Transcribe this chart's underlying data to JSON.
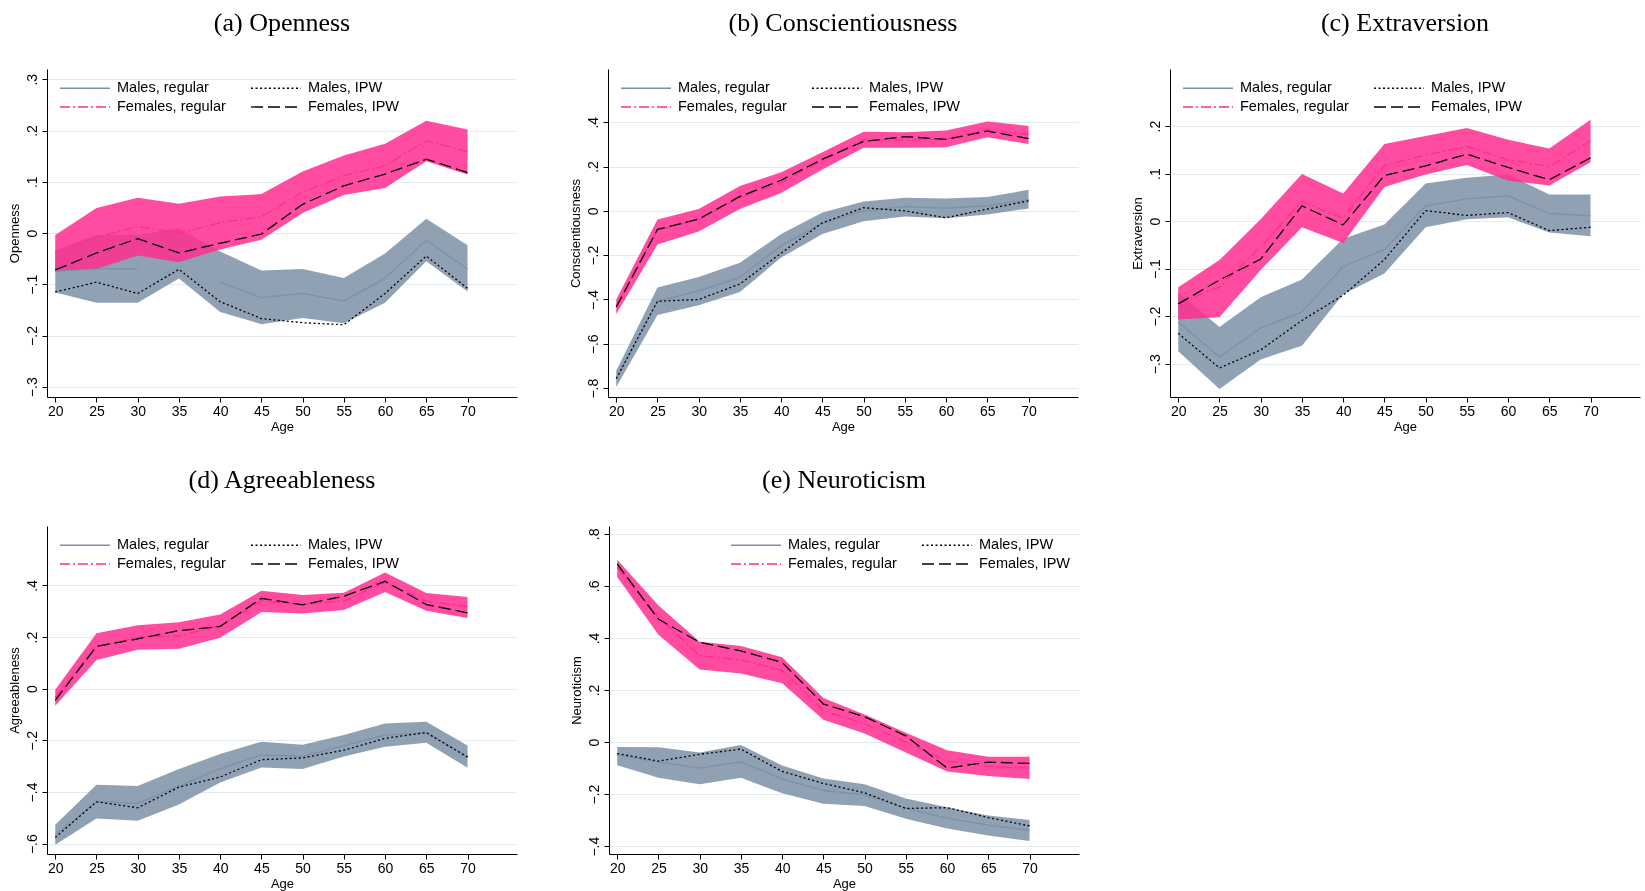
{
  "chart_data": [
    {
      "type": "line",
      "title": "(a) Openness",
      "xlabel": "Age",
      "ylabel": "Openness",
      "x": [
        20,
        25,
        30,
        35,
        40,
        45,
        50,
        55,
        60,
        65,
        70
      ],
      "xlim": [
        19,
        76
      ],
      "xticks": [
        20,
        25,
        30,
        35,
        40,
        45,
        50,
        55,
        60,
        65,
        70
      ],
      "ylim": [
        -0.32,
        0.32
      ],
      "yticks": [
        {
          "value": -0.3,
          "label": "−.3"
        },
        {
          "value": -0.2,
          "label": "−.2"
        },
        {
          "value": -0.1,
          "label": "−.1"
        },
        {
          "value": 0,
          "label": "0"
        },
        {
          "value": 0.1,
          "label": ".1"
        },
        {
          "value": 0.2,
          "label": ".2"
        },
        {
          "value": 0.3,
          "label": ".3"
        }
      ],
      "grid": "y",
      "legend": "top left",
      "series": [
        {
          "name": "Males, regular",
          "color": "#7d90a7",
          "line_style": "solid",
          "values": [
            -0.075,
            -0.07,
            -0.07,
            null,
            -0.096,
            -0.126,
            -0.118,
            -0.133,
            -0.088,
            -0.014,
            -0.07
          ],
          "lower": [
            -0.116,
            -0.136,
            -0.136,
            -0.089,
            -0.154,
            -0.178,
            -0.166,
            -0.176,
            -0.136,
            -0.055,
            -0.114
          ],
          "upper": [
            -0.034,
            -0.004,
            -0.004,
            0.009,
            -0.036,
            -0.073,
            -0.07,
            -0.088,
            -0.04,
            0.028,
            -0.024
          ]
        },
        {
          "name": "Males, IPW",
          "color": "#000000",
          "line_style": "dotted",
          "values": [
            -0.115,
            -0.096,
            -0.118,
            -0.071,
            -0.134,
            -0.167,
            -0.175,
            -0.179,
            -0.118,
            -0.045,
            -0.108
          ]
        },
        {
          "name": "Females, regular",
          "color": "#ff2d91",
          "line_style": "dashdot",
          "values": [
            -0.039,
            -0.009,
            0.013,
            0,
            0.02,
            0.032,
            0.08,
            0.112,
            0.131,
            0.18,
            0.159
          ],
          "lower": [
            -0.074,
            -0.07,
            -0.044,
            -0.057,
            -0.032,
            -0.013,
            0.039,
            0.074,
            0.088,
            0.14,
            0.114
          ],
          "upper": [
            -0.004,
            0.049,
            0.069,
            0.057,
            0.071,
            0.076,
            0.12,
            0.151,
            0.174,
            0.219,
            0.202
          ]
        },
        {
          "name": "Females, IPW",
          "color": "#000000",
          "line_style": "dashed",
          "values": [
            -0.072,
            -0.039,
            -0.011,
            -0.039,
            -0.02,
            -0.002,
            0.056,
            0.092,
            0.115,
            0.144,
            0.118
          ]
        }
      ]
    },
    {
      "type": "line",
      "title": "(b) Conscientiousness",
      "xlabel": "Age",
      "ylabel": "Conscientiousness",
      "x": [
        20,
        25,
        30,
        35,
        40,
        45,
        50,
        55,
        60,
        65,
        70
      ],
      "xlim": [
        19,
        76
      ],
      "xticks": [
        20,
        25,
        30,
        35,
        40,
        45,
        50,
        55,
        60,
        65,
        70
      ],
      "ylim": [
        -0.84,
        0.64
      ],
      "yticks": [
        {
          "value": -0.8,
          "label": "−.8"
        },
        {
          "value": -0.6,
          "label": "−.6"
        },
        {
          "value": -0.4,
          "label": "−.4"
        },
        {
          "value": -0.2,
          "label": "−.2"
        },
        {
          "value": 0,
          "label": "0"
        },
        {
          "value": 0.2,
          "label": ".2"
        },
        {
          "value": 0.4,
          "label": ".4"
        }
      ],
      "grid": "y",
      "legend": "top left",
      "series": [
        {
          "name": "Males, regular",
          "color": "#7d90a7",
          "line_style": "solid",
          "values": [
            -0.757,
            -0.408,
            -0.361,
            -0.299,
            -0.157,
            -0.056,
            0,
            0.019,
            0.012,
            0.023,
            0.05
          ],
          "lower": [
            -0.795,
            -0.47,
            -0.426,
            -0.366,
            -0.211,
            -0.105,
            -0.047,
            -0.025,
            -0.033,
            -0.016,
            0.011
          ],
          "upper": [
            -0.722,
            -0.346,
            -0.299,
            -0.234,
            -0.105,
            -0.008,
            0.042,
            0.059,
            0.056,
            0.062,
            0.095
          ]
        },
        {
          "name": "Males, IPW",
          "color": "#000000",
          "line_style": "dotted",
          "values": [
            -0.757,
            -0.408,
            -0.4,
            -0.33,
            -0.191,
            -0.054,
            0.014,
            0,
            -0.031,
            0.008,
            0.045
          ]
        },
        {
          "name": "Females, regular",
          "color": "#ff2d91",
          "line_style": "dashdot",
          "values": [
            -0.431,
            -0.087,
            -0.04,
            0.06,
            0.127,
            0.225,
            0.321,
            0.319,
            0.324,
            0.367,
            0.344
          ],
          "lower": [
            -0.465,
            -0.152,
            -0.093,
            0.008,
            0.081,
            0.186,
            0.285,
            0.285,
            0.287,
            0.332,
            0.302
          ],
          "upper": [
            -0.4,
            -0.039,
            0.008,
            0.112,
            0.174,
            0.264,
            0.357,
            0.355,
            0.363,
            0.403,
            0.383
          ]
        },
        {
          "name": "Females, IPW",
          "color": "#000000",
          "line_style": "dashed",
          "values": [
            -0.434,
            -0.084,
            -0.037,
            0.065,
            0.138,
            0.233,
            0.313,
            0.335,
            0.322,
            0.36,
            0.326
          ]
        }
      ]
    },
    {
      "type": "line",
      "title": "(c) Extraversion",
      "xlabel": "Age",
      "ylabel": "Extraversion",
      "x": [
        20,
        25,
        30,
        35,
        40,
        45,
        50,
        55,
        60,
        65,
        70
      ],
      "xlim": [
        19,
        76
      ],
      "xticks": [
        20,
        25,
        30,
        35,
        40,
        45,
        50,
        55,
        60,
        65,
        70
      ],
      "ylim": [
        -0.37,
        0.32
      ],
      "yticks": [
        {
          "value": -0.3,
          "label": "−.3"
        },
        {
          "value": -0.2,
          "label": "−.2"
        },
        {
          "value": -0.1,
          "label": "−.1"
        },
        {
          "value": 0,
          "label": "0"
        },
        {
          "value": 0.1,
          "label": ".1"
        },
        {
          "value": 0.2,
          "label": ".2"
        }
      ],
      "grid": "y",
      "legend": "top left",
      "series": [
        {
          "name": "Males, regular",
          "color": "#7d90a7",
          "line_style": "solid",
          "values": [
            -0.212,
            -0.286,
            -0.225,
            -0.191,
            -0.096,
            -0.06,
            0.032,
            0.047,
            0.053,
            0.016,
            0.011
          ],
          "lower": [
            -0.274,
            -0.353,
            -0.291,
            -0.262,
            -0.154,
            -0.11,
            -0.013,
            0.004,
            0.008,
            -0.024,
            -0.032
          ],
          "upper": [
            -0.15,
            -0.223,
            -0.16,
            -0.123,
            -0.037,
            -0.007,
            0.079,
            0.091,
            0.098,
            0.056,
            0.056
          ]
        },
        {
          "name": "Males, IPW",
          "color": "#000000",
          "line_style": "dotted",
          "values": [
            -0.236,
            -0.309,
            -0.271,
            -0.209,
            -0.156,
            -0.081,
            0.022,
            0.012,
            0.018,
            -0.02,
            -0.013
          ]
        },
        {
          "name": "Females, regular",
          "color": "#ff2d91",
          "line_style": "dashdot",
          "values": [
            -0.172,
            -0.139,
            -0.054,
            0.041,
            0.006,
            0.117,
            0.139,
            0.157,
            0.129,
            0.115,
            0.169
          ],
          "lower": [
            -0.207,
            -0.202,
            -0.103,
            -0.013,
            -0.046,
            0.072,
            0.098,
            0.118,
            0.085,
            0.075,
            0.124
          ],
          "upper": [
            -0.139,
            -0.082,
            0.004,
            0.099,
            0.058,
            0.162,
            0.179,
            0.196,
            0.171,
            0.153,
            0.213
          ]
        },
        {
          "name": "Females, IPW",
          "color": "#000000",
          "line_style": "dashed",
          "values": [
            -0.174,
            -0.124,
            -0.08,
            0.032,
            -0.008,
            0.096,
            0.116,
            0.141,
            0.113,
            0.087,
            0.133
          ]
        }
      ]
    },
    {
      "type": "line",
      "title": "(d) Agreeableness",
      "xlabel": "Age",
      "ylabel": "Agreeableness",
      "x": [
        20,
        25,
        30,
        35,
        40,
        45,
        50,
        55,
        60,
        65,
        70
      ],
      "xlim": [
        19,
        76
      ],
      "xticks": [
        20,
        25,
        30,
        35,
        40,
        45,
        50,
        55,
        60,
        65,
        70
      ],
      "ylim": [
        -0.64,
        0.63
      ],
      "yticks": [
        {
          "value": -0.6,
          "label": "−.6"
        },
        {
          "value": -0.4,
          "label": "−.4"
        },
        {
          "value": -0.2,
          "label": "−.2"
        },
        {
          "value": 0,
          "label": "0"
        },
        {
          "value": 0.2,
          "label": ".2"
        },
        {
          "value": 0.4,
          "label": ".4"
        }
      ],
      "grid": "y",
      "legend": "top left",
      "series": [
        {
          "name": "Males, regular",
          "color": "#7d90a7",
          "line_style": "solid",
          "values": [
            -0.567,
            -0.437,
            -0.444,
            -0.377,
            -0.31,
            -0.256,
            -0.262,
            -0.22,
            -0.18,
            -0.17,
            -0.262
          ],
          "lower": [
            -0.604,
            -0.503,
            -0.511,
            -0.448,
            -0.363,
            -0.305,
            -0.311,
            -0.262,
            -0.225,
            -0.209,
            -0.306
          ],
          "upper": [
            -0.527,
            -0.372,
            -0.377,
            -0.311,
            -0.253,
            -0.205,
            -0.217,
            -0.179,
            -0.135,
            -0.128,
            -0.22
          ]
        },
        {
          "name": "Males, IPW",
          "color": "#000000",
          "line_style": "dotted",
          "values": [
            -0.576,
            -0.438,
            -0.461,
            -0.381,
            -0.342,
            -0.275,
            -0.268,
            -0.238,
            -0.192,
            -0.17,
            -0.265
          ]
        },
        {
          "name": "Females, regular",
          "color": "#ff2d91",
          "line_style": "dashdot",
          "values": [
            -0.034,
            0.162,
            0.199,
            0.205,
            0.244,
            0.339,
            0.327,
            0.339,
            0.413,
            0.339,
            0.318
          ],
          "lower": [
            -0.066,
            0.111,
            0.151,
            0.155,
            0.197,
            0.297,
            0.291,
            0.305,
            0.374,
            0.302,
            0.274
          ],
          "upper": [
            -0.004,
            0.215,
            0.246,
            0.257,
            0.287,
            0.379,
            0.363,
            0.372,
            0.45,
            0.371,
            0.355
          ]
        },
        {
          "name": "Females, IPW",
          "color": "#000000",
          "line_style": "dashed",
          "values": [
            -0.045,
            0.164,
            0.193,
            0.225,
            0.241,
            0.35,
            0.325,
            0.358,
            0.416,
            0.326,
            0.294
          ]
        }
      ]
    },
    {
      "type": "line",
      "title": "(e) Neuroticism",
      "xlabel": "Age",
      "ylabel": "Neuroticism",
      "x": [
        20,
        25,
        30,
        35,
        40,
        45,
        50,
        55,
        60,
        65,
        70
      ],
      "xlim": [
        19,
        76
      ],
      "xticks": [
        20,
        25,
        30,
        35,
        40,
        45,
        50,
        55,
        60,
        65,
        70
      ],
      "ylim": [
        -0.43,
        0.83
      ],
      "yticks": [
        {
          "value": -0.4,
          "label": "−.4"
        },
        {
          "value": -0.2,
          "label": "−.2"
        },
        {
          "value": 0,
          "label": "0"
        },
        {
          "value": 0.2,
          "label": ".2"
        },
        {
          "value": 0.4,
          "label": ".4"
        },
        {
          "value": 0.6,
          "label": ".6"
        },
        {
          "value": 0.8,
          "label": ".8"
        }
      ],
      "grid": "y",
      "legend": "top right",
      "series": [
        {
          "name": "Males, regular",
          "color": "#7d90a7",
          "line_style": "solid",
          "values": [
            -0.049,
            -0.077,
            -0.1,
            -0.076,
            -0.142,
            -0.186,
            -0.202,
            -0.255,
            -0.292,
            -0.319,
            -0.339
          ],
          "lower": [
            -0.089,
            -0.137,
            -0.162,
            -0.137,
            -0.197,
            -0.237,
            -0.246,
            -0.295,
            -0.332,
            -0.359,
            -0.38
          ],
          "upper": [
            -0.019,
            -0.02,
            -0.04,
            -0.011,
            -0.09,
            -0.14,
            -0.162,
            -0.217,
            -0.25,
            -0.282,
            -0.299
          ]
        },
        {
          "name": "Males, IPW",
          "color": "#000000",
          "line_style": "dotted",
          "values": [
            -0.044,
            -0.073,
            -0.047,
            -0.027,
            -0.113,
            -0.159,
            -0.195,
            -0.255,
            -0.252,
            -0.29,
            -0.322
          ]
        },
        {
          "name": "Females, regular",
          "color": "#ff2d91",
          "line_style": "dashdot",
          "values": [
            0.671,
            0.478,
            0.332,
            0.316,
            0.276,
            0.122,
            0.07,
            0,
            -0.073,
            -0.093,
            -0.1
          ],
          "lower": [
            0.634,
            0.412,
            0.279,
            0.263,
            0.226,
            0.086,
            0.033,
            -0.04,
            -0.113,
            -0.13,
            -0.142
          ],
          "upper": [
            0.7,
            0.525,
            0.385,
            0.369,
            0.326,
            0.169,
            0.106,
            0.036,
            -0.031,
            -0.056,
            -0.056
          ]
        },
        {
          "name": "Females, IPW",
          "color": "#000000",
          "line_style": "dashed",
          "values": [
            0.684,
            0.472,
            0.383,
            0.35,
            0.306,
            0.146,
            0.097,
            0.024,
            -0.1,
            -0.077,
            -0.082
          ]
        }
      ]
    }
  ]
}
